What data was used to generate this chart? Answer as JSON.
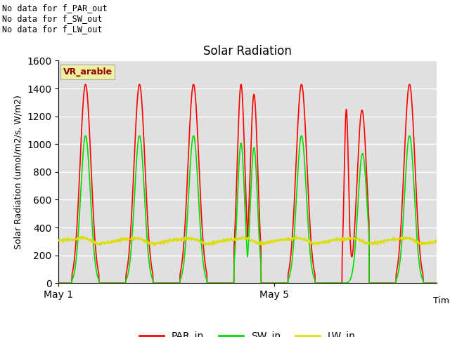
{
  "title": "Solar Radiation",
  "ylabel": "Solar Radiation (umol/m2/s, W/m2)",
  "xlabel": "Time",
  "ylim": [
    0,
    1600
  ],
  "yticks": [
    0,
    200,
    400,
    600,
    800,
    1000,
    1200,
    1400,
    1600
  ],
  "xtick_labels": [
    "May 1",
    "May 5"
  ],
  "annotation_text": "No data for f_PAR_out\nNo data for f_SW_out\nNo data for f_LW_out",
  "vr_arable_label": "VR_arable",
  "plot_bg_color": "#e0e0e0",
  "colors": {
    "PAR_in": "#ff0000",
    "SW_in": "#00dd00",
    "LW_in": "#dddd00"
  },
  "legend_labels": [
    "PAR_in",
    "SW_in",
    "LW_in"
  ],
  "par_peak": 1430,
  "sw_peak": 1060,
  "lw_base": 300
}
